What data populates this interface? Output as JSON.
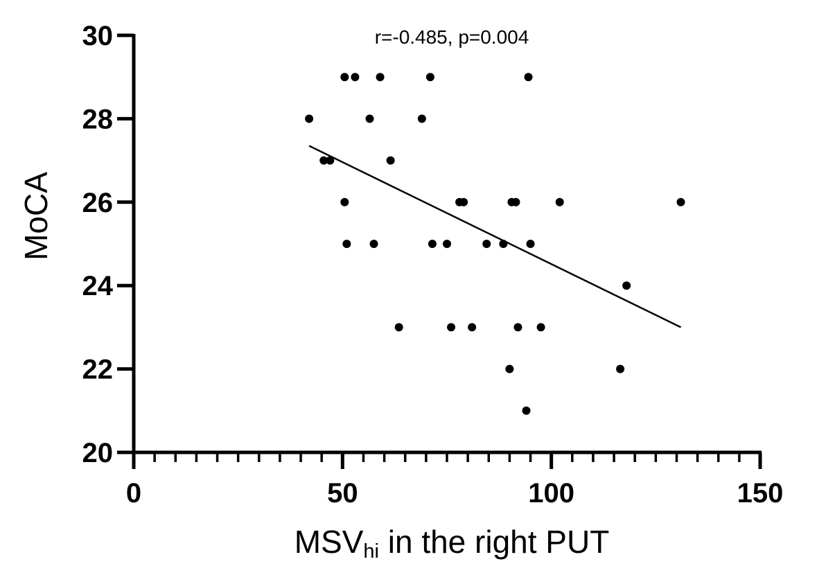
{
  "chart_data": {
    "type": "scatter",
    "title": "",
    "annotation": "r=-0.485, p=0.004",
    "xlabel_main": "MSV",
    "xlabel_subscript": "hi",
    "xlabel_rest": " in the right PUT",
    "ylabel": "MoCA",
    "xlim": [
      0,
      150
    ],
    "ylim": [
      20,
      30
    ],
    "x_major_ticks": [
      0,
      50,
      100,
      150
    ],
    "x_tick_labels": [
      "0",
      "50",
      "100",
      "150"
    ],
    "x_minor_step": 5,
    "y_ticks": [
      20,
      22,
      24,
      26,
      28,
      30
    ],
    "y_tick_labels": [
      "20",
      "22",
      "24",
      "26",
      "28",
      "30"
    ],
    "grid": false,
    "points": [
      {
        "x": 42,
        "y": 28
      },
      {
        "x": 45.5,
        "y": 27
      },
      {
        "x": 47,
        "y": 27
      },
      {
        "x": 50.5,
        "y": 29
      },
      {
        "x": 53,
        "y": 29
      },
      {
        "x": 59,
        "y": 29
      },
      {
        "x": 71,
        "y": 29
      },
      {
        "x": 94.5,
        "y": 29
      },
      {
        "x": 56.5,
        "y": 28
      },
      {
        "x": 69,
        "y": 28
      },
      {
        "x": 61.5,
        "y": 27
      },
      {
        "x": 50.5,
        "y": 26
      },
      {
        "x": 78,
        "y": 26
      },
      {
        "x": 79,
        "y": 26
      },
      {
        "x": 90.5,
        "y": 26
      },
      {
        "x": 91.5,
        "y": 26
      },
      {
        "x": 102,
        "y": 26
      },
      {
        "x": 131,
        "y": 26
      },
      {
        "x": 51,
        "y": 25
      },
      {
        "x": 57.5,
        "y": 25
      },
      {
        "x": 71.5,
        "y": 25
      },
      {
        "x": 75,
        "y": 25
      },
      {
        "x": 84.5,
        "y": 25
      },
      {
        "x": 88.5,
        "y": 25
      },
      {
        "x": 95,
        "y": 25
      },
      {
        "x": 118,
        "y": 24
      },
      {
        "x": 63.5,
        "y": 23
      },
      {
        "x": 76,
        "y": 23
      },
      {
        "x": 81,
        "y": 23
      },
      {
        "x": 92,
        "y": 23
      },
      {
        "x": 97.5,
        "y": 23
      },
      {
        "x": 90,
        "y": 22
      },
      {
        "x": 116.5,
        "y": 22
      },
      {
        "x": 94,
        "y": 21
      }
    ],
    "regression_line": {
      "x": [
        42,
        131
      ],
      "y": [
        27.35,
        23
      ]
    },
    "colors": {
      "points": "#000000",
      "line": "#000000",
      "axes": "#000000"
    }
  }
}
